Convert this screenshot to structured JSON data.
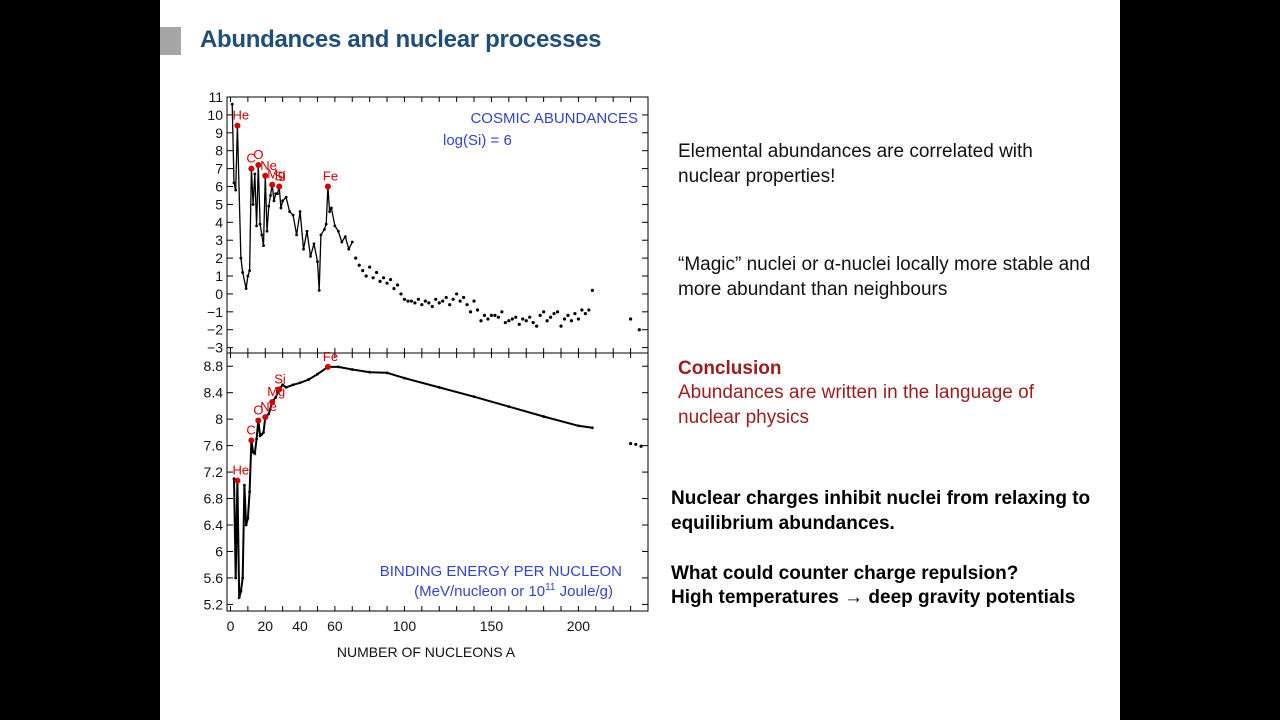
{
  "slide": {
    "title": "Abundances and nuclear processes",
    "colors": {
      "title": "#1f4e79",
      "accent_red": "#9b1c1c",
      "chart_blue": "#3344cc",
      "marker_red": "#d00000"
    }
  },
  "text": {
    "p1": "Elemental abundances are correlated with nuclear properties!",
    "p2": "“Magic” nuclei or α-nuclei locally more stable and more abundant than neighbours",
    "conclusion_heading": "Conclusion",
    "conclusion_body": "Abundances are written in the language of nuclear physics",
    "p4": "Nuclear charges inhibit nuclei from relaxing to equilibrium abundances.",
    "p5": "What could counter charge repulsion?",
    "p6": "High temperatures → deep gravity potentials"
  },
  "chart_data": [
    {
      "type": "line",
      "title": "COSMIC ABUNDANCES",
      "subtitle": "log(Si) = 6",
      "xlabel": "NUMBER OF NUCLEONS A",
      "ylabel": "",
      "xlim": [
        -2,
        240
      ],
      "ylim": [
        -3.3,
        11
      ],
      "yticks": [
        "11",
        "10",
        "9",
        "8",
        "7",
        "6",
        "5",
        "4",
        "3",
        "2",
        "1",
        "0",
        "−1",
        "−2",
        "−3"
      ],
      "series": [
        {
          "name": "abundance",
          "x": [
            1,
            2,
            3,
            4,
            6,
            7,
            9,
            10,
            11,
            12,
            13,
            14,
            15,
            16,
            17,
            18,
            19,
            20,
            21,
            22,
            23,
            24,
            25,
            26,
            27,
            28,
            29,
            30,
            32,
            34,
            36,
            38,
            40,
            42,
            44,
            46,
            48,
            50,
            51,
            52,
            54,
            55,
            56,
            57,
            58,
            60,
            62,
            64,
            66,
            68,
            70
          ],
          "y": [
            10.6,
            6.2,
            5.8,
            9.4,
            2.0,
            1.2,
            0.3,
            1.0,
            1.3,
            7.0,
            5.0,
            6.7,
            3.8,
            7.2,
            3.9,
            3.3,
            2.7,
            6.6,
            3.5,
            4.9,
            5.5,
            6.1,
            5.2,
            5.6,
            5.6,
            6.0,
            4.8,
            5.2,
            5.4,
            4.6,
            4.4,
            3.3,
            4.6,
            2.5,
            3.5,
            2.1,
            2.8,
            1.8,
            0.2,
            3.3,
            3.6,
            3.9,
            6.0,
            4.6,
            4.8,
            3.8,
            3.5,
            2.9,
            3.2,
            2.5,
            2.9
          ]
        }
      ],
      "scatter_tail": {
        "x": [
          72,
          74,
          76,
          78,
          80,
          82,
          84,
          86,
          88,
          90,
          92,
          94,
          96,
          98,
          100,
          102,
          104,
          106,
          108,
          110,
          112,
          114,
          116,
          118,
          120,
          122,
          124,
          126,
          128,
          130,
          132,
          134,
          136,
          138,
          140,
          142,
          144,
          146,
          148,
          150,
          152,
          154,
          156,
          158,
          160,
          162,
          164,
          166,
          168,
          170,
          172,
          174,
          176,
          178,
          180,
          182,
          184,
          186,
          188,
          190,
          192,
          194,
          196,
          198,
          200,
          202,
          204,
          206,
          208,
          230,
          235
        ],
        "y": [
          2.0,
          1.6,
          1.3,
          1.0,
          1.5,
          0.9,
          1.2,
          0.7,
          0.9,
          0.6,
          0.8,
          0.3,
          0.5,
          0.0,
          -0.3,
          -0.4,
          -0.4,
          -0.5,
          -0.3,
          -0.6,
          -0.4,
          -0.5,
          -0.7,
          -0.3,
          -0.5,
          -0.4,
          -0.2,
          -0.6,
          -0.3,
          0.0,
          -0.4,
          -0.2,
          -0.6,
          -1.0,
          -0.4,
          -0.9,
          -1.5,
          -1.2,
          -1.4,
          -1.2,
          -1.2,
          -1.3,
          -1.0,
          -1.6,
          -1.5,
          -1.4,
          -1.3,
          -1.7,
          -1.4,
          -1.5,
          -1.3,
          -1.6,
          -1.8,
          -1.2,
          -1.0,
          -1.5,
          -1.3,
          -1.1,
          -1.0,
          -1.8,
          -1.4,
          -1.2,
          -1.5,
          -1.1,
          -1.4,
          -0.9,
          -1.1,
          -0.9,
          0.2,
          -1.4,
          -2.0
        ]
      },
      "annotations": [
        {
          "label": "He",
          "x": 4,
          "y": 9.4
        },
        {
          "label": "C",
          "x": 12,
          "y": 7.0
        },
        {
          "label": "O",
          "x": 16,
          "y": 7.2
        },
        {
          "label": "Ne",
          "x": 20,
          "y": 6.6
        },
        {
          "label": "Mg",
          "x": 24,
          "y": 6.1
        },
        {
          "label": "Si",
          "x": 28,
          "y": 6.0
        },
        {
          "label": "Fe",
          "x": 56,
          "y": 6.0
        }
      ]
    },
    {
      "type": "line",
      "title": "BINDING ENERGY PER NUCLEON",
      "subtitle": "(MeV/nucleon or 10",
      "subtitle_sup": "11",
      "subtitle_end": " Joule/g)",
      "xlabel": "NUMBER OF NUCLEONS A",
      "xlim": [
        -2,
        240
      ],
      "ylim": [
        5.1,
        9.0
      ],
      "xticks": [
        "0",
        "20",
        "40",
        "60",
        "100",
        "150",
        "200"
      ],
      "yticks": [
        "8.8",
        "8.4",
        "8",
        "7.6",
        "7.2",
        "6.8",
        "6.4",
        "6",
        "5.6",
        "5.2"
      ],
      "series": [
        {
          "name": "binding",
          "x": [
            2,
            3,
            4,
            5,
            6,
            7,
            8,
            9,
            10,
            11,
            12,
            13,
            14,
            15,
            16,
            17,
            18,
            19,
            20,
            22,
            24,
            26,
            28,
            30,
            32,
            36,
            40,
            45,
            50,
            56,
            62,
            70,
            80,
            90,
            100,
            120,
            140,
            160,
            180,
            200,
            208
          ],
          "y": [
            7.1,
            5.6,
            7.07,
            5.3,
            5.4,
            5.6,
            7.0,
            6.4,
            6.5,
            6.9,
            7.68,
            7.5,
            7.48,
            7.7,
            7.98,
            7.75,
            7.77,
            7.8,
            8.03,
            8.08,
            8.26,
            8.33,
            8.45,
            8.52,
            8.48,
            8.52,
            8.55,
            8.6,
            8.68,
            8.79,
            8.79,
            8.75,
            8.71,
            8.7,
            8.62,
            8.48,
            8.34,
            8.19,
            8.04,
            7.9,
            7.87
          ]
        }
      ],
      "tail": {
        "x": [
          230,
          233,
          236
        ],
        "y": [
          7.63,
          7.62,
          7.59
        ]
      },
      "annotations": [
        {
          "label": "He",
          "x": 4,
          "y": 7.07
        },
        {
          "label": "C",
          "x": 12,
          "y": 7.68
        },
        {
          "label": "O",
          "x": 16,
          "y": 7.98
        },
        {
          "label": "Ne",
          "x": 20,
          "y": 8.03
        },
        {
          "label": "Mg",
          "x": 24,
          "y": 8.26
        },
        {
          "label": "Si",
          "x": 28,
          "y": 8.45
        },
        {
          "label": "Fe",
          "x": 56,
          "y": 8.79
        }
      ]
    }
  ]
}
